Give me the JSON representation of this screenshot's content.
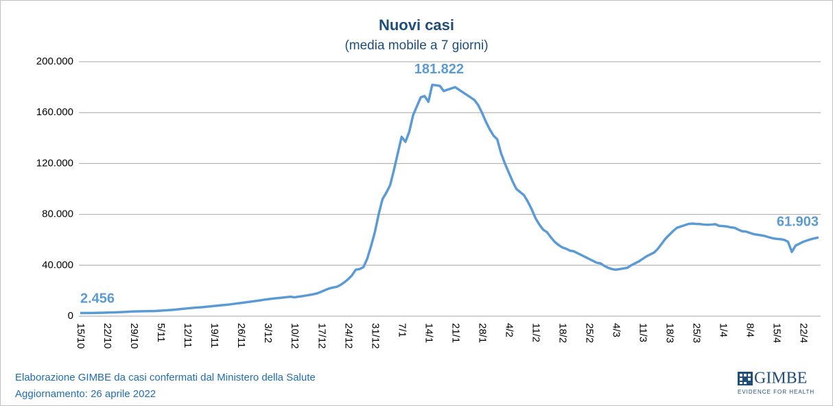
{
  "chart_data": {
    "type": "line",
    "title": "Nuovi casi",
    "subtitle": "(media mobile a 7 giorni)",
    "categories": [
      "15/10",
      null,
      null,
      null,
      null,
      null,
      null,
      "22/10",
      null,
      null,
      null,
      null,
      null,
      null,
      "29/10",
      null,
      null,
      null,
      null,
      null,
      null,
      "5/11",
      null,
      null,
      null,
      null,
      null,
      null,
      "12/11",
      null,
      null,
      null,
      null,
      null,
      null,
      "19/11",
      null,
      null,
      null,
      null,
      null,
      null,
      "26/11",
      null,
      null,
      null,
      null,
      null,
      null,
      "3/12",
      null,
      null,
      null,
      null,
      null,
      null,
      "10/12",
      null,
      null,
      null,
      null,
      null,
      null,
      "17/12",
      null,
      null,
      null,
      null,
      null,
      null,
      "24/12",
      null,
      null,
      null,
      null,
      null,
      null,
      "31/12",
      null,
      null,
      null,
      null,
      null,
      null,
      "7/1",
      null,
      null,
      null,
      null,
      null,
      null,
      "14/1",
      null,
      null,
      null,
      null,
      null,
      null,
      "21/1",
      null,
      null,
      null,
      null,
      null,
      null,
      "28/1",
      null,
      null,
      null,
      null,
      null,
      null,
      "4/2",
      null,
      null,
      null,
      null,
      null,
      null,
      "11/2",
      null,
      null,
      null,
      null,
      null,
      null,
      "18/2",
      null,
      null,
      null,
      null,
      null,
      null,
      "25/2",
      null,
      null,
      null,
      null,
      null,
      null,
      "4/3",
      null,
      null,
      null,
      null,
      null,
      null,
      "11/3",
      null,
      null,
      null,
      null,
      null,
      null,
      "18/3",
      null,
      null,
      null,
      null,
      null,
      null,
      "25/3",
      null,
      null,
      null,
      null,
      null,
      null,
      "1/4",
      null,
      null,
      null,
      null,
      null,
      null,
      "8/4",
      null,
      null,
      null,
      null,
      null,
      null,
      "15/4",
      null,
      null,
      null,
      null,
      null,
      null,
      "22/4",
      null,
      null,
      null,
      null
    ],
    "series": [
      {
        "name": "Nuovi casi",
        "color": "#5b9bd5",
        "values": [
          2456,
          2480,
          2500,
          2520,
          2540,
          2600,
          2700,
          2800,
          2900,
          3000,
          3100,
          3250,
          3400,
          3550,
          3700,
          3800,
          3850,
          3900,
          3950,
          4000,
          4100,
          4300,
          4500,
          4700,
          4900,
          5200,
          5500,
          5800,
          6100,
          6400,
          6700,
          6900,
          7100,
          7400,
          7700,
          8000,
          8300,
          8600,
          8900,
          9200,
          9600,
          10000,
          10400,
          10800,
          11200,
          11600,
          12000,
          12400,
          12900,
          13300,
          13700,
          14000,
          14300,
          14600,
          15000,
          15300,
          14800,
          15300,
          15700,
          16200,
          16700,
          17300,
          18000,
          19200,
          20500,
          21700,
          22500,
          23000,
          24500,
          26500,
          29000,
          32000,
          36500,
          37000,
          38500,
          45000,
          55000,
          66000,
          80000,
          92000,
          97000,
          103000,
          115000,
          128000,
          141000,
          137000,
          145000,
          158000,
          165000,
          172000,
          173000,
          168500,
          181822,
          181500,
          181000,
          177000,
          178000,
          179000,
          180000,
          178000,
          176000,
          174000,
          172000,
          170000,
          166000,
          160000,
          153000,
          147000,
          142000,
          139000,
          128000,
          120000,
          113000,
          106000,
          100000,
          97500,
          95000,
          90000,
          84000,
          77000,
          72000,
          68000,
          66000,
          62000,
          58500,
          56000,
          54000,
          53000,
          51500,
          51000,
          49500,
          48000,
          46500,
          45000,
          43500,
          42000,
          41500,
          39500,
          38000,
          37000,
          36500,
          37000,
          37500,
          38000,
          40000,
          41500,
          43000,
          45000,
          47000,
          48500,
          50000,
          53000,
          57000,
          61000,
          64000,
          67000,
          69500,
          70500,
          71500,
          72500,
          72800,
          72500,
          72400,
          72000,
          71800,
          72000,
          72300,
          71000,
          70800,
          70500,
          69800,
          69500,
          68000,
          66800,
          66500,
          65500,
          64500,
          64000,
          63500,
          63000,
          62000,
          61200,
          60800,
          60500,
          60000,
          58500,
          50500,
          55500,
          57000,
          58500,
          59500,
          60500,
          61200,
          61903
        ],
        "value_labels": [
          "2.456",
          null,
          null,
          null,
          null,
          null,
          null,
          null,
          null,
          null,
          null,
          null,
          null,
          null,
          null,
          null,
          null,
          null,
          null,
          null,
          null,
          null,
          null,
          null,
          null,
          null,
          null,
          null,
          null,
          null,
          null,
          null,
          null,
          null,
          null,
          null,
          null,
          null,
          null,
          null,
          null,
          null,
          null,
          null,
          null,
          null,
          null,
          null,
          null,
          null,
          null,
          null,
          null,
          null,
          null,
          null,
          null,
          null,
          null,
          null,
          null,
          null,
          null,
          null,
          null,
          null,
          null,
          null,
          null,
          null,
          null,
          null,
          null,
          null,
          null,
          null,
          null,
          null,
          null,
          null,
          null,
          null,
          null,
          null,
          null,
          null,
          null,
          null,
          null,
          null,
          null,
          null,
          "181.822",
          null,
          null,
          null,
          null,
          null,
          null,
          null,
          null,
          null,
          null,
          null,
          null,
          null,
          null,
          null,
          null,
          null,
          null,
          null,
          null,
          null,
          null,
          null,
          null,
          null,
          null,
          null,
          null,
          null,
          null,
          null,
          null,
          null,
          null,
          null,
          null,
          null,
          null,
          null,
          null,
          null,
          null,
          null,
          null,
          null,
          null,
          null,
          null,
          null,
          null,
          null,
          null,
          null,
          null,
          null,
          null,
          null,
          null,
          null,
          null,
          null,
          null,
          null,
          null,
          null,
          null,
          null,
          null,
          null,
          null,
          null,
          null,
          null,
          null,
          null,
          null,
          null,
          null,
          null,
          null,
          null,
          null,
          null,
          null,
          null,
          null,
          null,
          null,
          null,
          null,
          null,
          null,
          null,
          null,
          null,
          null,
          null,
          null,
          null,
          null,
          "61.903"
        ]
      }
    ],
    "ylim": [
      0,
      200000
    ],
    "yticks": [
      0,
      {
        "value": 40000,
        "label": "40.000"
      },
      {
        "value": 80000,
        "label": "80.000"
      },
      {
        "value": 120000,
        "label": "120.000"
      },
      {
        "value": 160000,
        "label": "160.000"
      },
      {
        "value": 200000,
        "label": "200.000"
      }
    ],
    "grid": true,
    "source": "Elaborazione GIMBE da casi confermati dal Ministero della Salute",
    "updated": "Aggiornamento: 26 aprile 2022",
    "logo": "GIMBE",
    "logo_tagline": "EVIDENCE FOR HEALTH"
  }
}
